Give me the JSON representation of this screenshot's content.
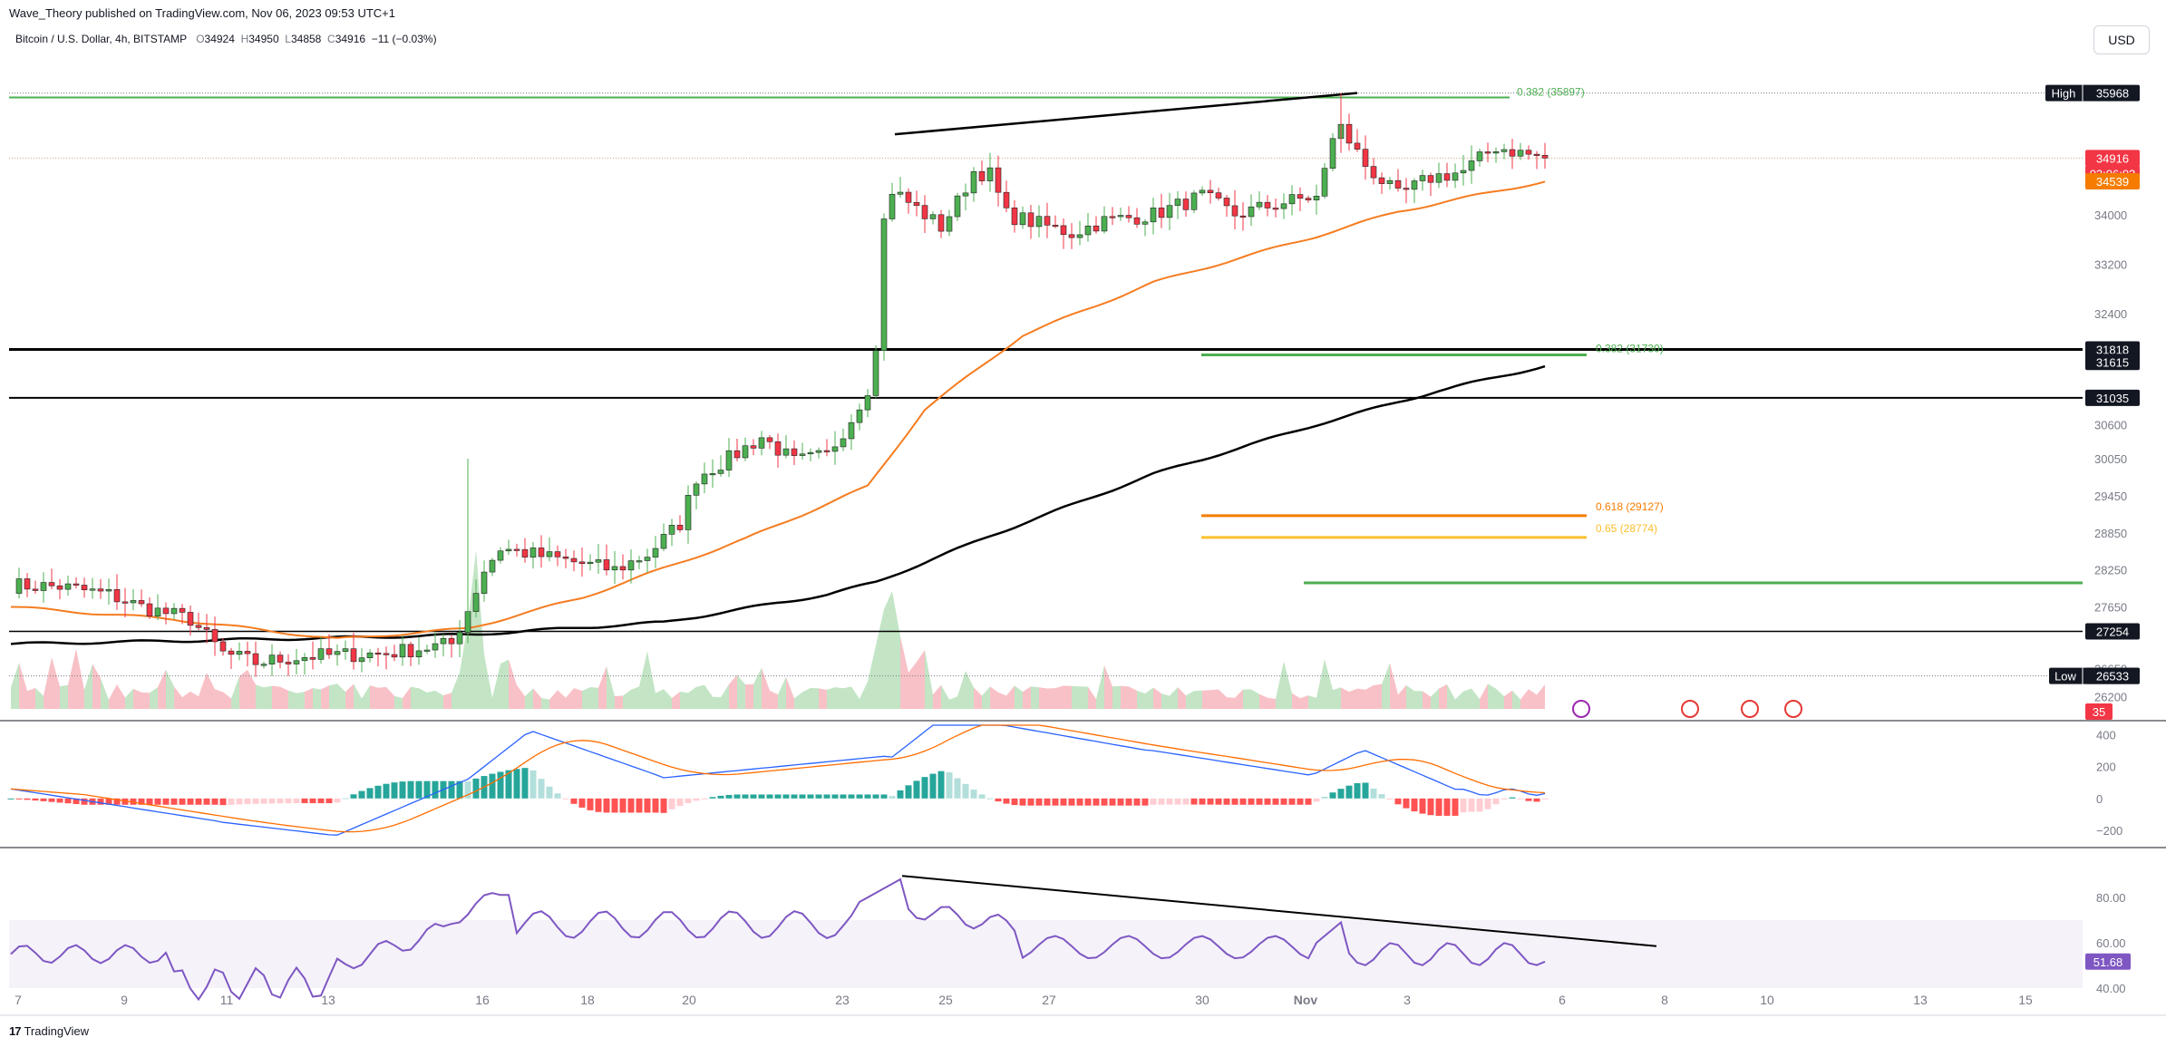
{
  "header": {
    "publisher": "Wave_Theory published on TradingView.com, Nov 06, 2023 09:53 UTC+1",
    "symbol": "Bitcoin / U.S. Dollar, 4h, BITSTAMP",
    "o_label": "O",
    "o": "34924",
    "h_label": "H",
    "h": "34950",
    "l_label": "L",
    "l": "34858",
    "c_label": "C",
    "c": "34916",
    "change": "−11 (−0.03%)",
    "currency": "USD"
  },
  "footer": {
    "brand": "TradingView",
    "logo_glyph": "17"
  },
  "colors": {
    "up": "#4caf50",
    "up_body": "#4caf50",
    "down": "#f23645",
    "ema_orange": "#f57c20",
    "ema_black": "#000000",
    "fib_green": "#4caf50",
    "fib_orange": "#f57c00",
    "fib_yellow": "#fbc02d",
    "macd_line": "#2962ff",
    "signal_line": "#ff6d00",
    "hist_pos": "#26a69a",
    "hist_pos_fade": "#b2dfdb",
    "hist_neg": "#ff5252",
    "hist_neg_fade": "#ffcdd2",
    "rsi": "#7e57c2",
    "rsi_band": "#7e57c2"
  },
  "price_axis": {
    "labels": [
      {
        "text": "34916",
        "value": 34916,
        "kind": "last",
        "bg": "#f23645",
        "fg": "#ffffff"
      },
      {
        "text": "03:06:03",
        "value": 34800,
        "kind": "countdown",
        "bg": "#f23645",
        "fg": "#ffffff"
      },
      {
        "text": "34539",
        "value": 34539,
        "kind": "ema",
        "bg": "#f57c00",
        "fg": "#ffffff"
      },
      {
        "text": "34000",
        "value": 34000,
        "kind": "tick"
      },
      {
        "text": "33200",
        "value": 33200,
        "kind": "tick"
      },
      {
        "text": "32400",
        "value": 32400,
        "kind": "tick"
      },
      {
        "text": "31818",
        "value": 31818,
        "kind": "level",
        "bg": "#131722",
        "fg": "#ffffff"
      },
      {
        "text": "31615",
        "value": 31615,
        "kind": "level",
        "bg": "#131722",
        "fg": "#ffffff"
      },
      {
        "text": "31035",
        "value": 31035,
        "kind": "level",
        "bg": "#131722",
        "fg": "#ffffff"
      },
      {
        "text": "30600",
        "value": 30600,
        "kind": "tick"
      },
      {
        "text": "30050",
        "value": 30050,
        "kind": "tick"
      },
      {
        "text": "29450",
        "value": 29450,
        "kind": "tick"
      },
      {
        "text": "28850",
        "value": 28850,
        "kind": "tick"
      },
      {
        "text": "28250",
        "value": 28250,
        "kind": "tick"
      },
      {
        "text": "27650",
        "value": 27650,
        "kind": "tick"
      },
      {
        "text": "27254",
        "value": 27254,
        "kind": "level",
        "bg": "#131722",
        "fg": "#ffffff"
      },
      {
        "text": "26650",
        "value": 26650,
        "kind": "tick"
      },
      {
        "text": "26533",
        "value": 26533,
        "kind": "level",
        "bg": "#131722",
        "fg": "#ffffff"
      },
      {
        "text": "26200",
        "value": 26200,
        "kind": "tick"
      }
    ],
    "high": {
      "tag": "High",
      "text": "35968",
      "value": 35968
    },
    "low": {
      "tag": "Low",
      "text": "26533",
      "value": 26533
    },
    "volume_badge": {
      "text": "35"
    }
  },
  "macd_axis": [
    "400",
    "200",
    "0",
    "−200"
  ],
  "rsi_axis": [
    "80.00",
    "60.00",
    "40.00"
  ],
  "rsi_last": "51.68",
  "time_axis": [
    "7",
    "9",
    "11",
    "13",
    "16",
    "18",
    "20",
    "23",
    "25",
    "27",
    "30",
    "Nov",
    "3",
    "6",
    "8",
    "10",
    "13",
    "15"
  ],
  "annotations": {
    "fib_top": "0.382 (35897)",
    "fib_mid": "0.382 (31730)",
    "fib_618": "0.618 (29127)",
    "fib_65": "0.65 (28774)"
  },
  "chart_data": {
    "type": "candlestick",
    "title": "Bitcoin / U.S. Dollar, 4h, BITSTAMP",
    "timeframe": "4h",
    "range": {
      "start": "Oct 7 2023",
      "end": "Nov 6 2023"
    },
    "price_ylim": [
      26000,
      36300
    ],
    "anchors": [
      {
        "i": 0,
        "price": 28000
      },
      {
        "i": 6,
        "price": 27980
      },
      {
        "i": 12,
        "price": 27850
      },
      {
        "i": 16,
        "price": 27650
      },
      {
        "i": 22,
        "price": 27450
      },
      {
        "i": 26,
        "price": 26900
      },
      {
        "i": 30,
        "price": 26750
      },
      {
        "i": 36,
        "price": 26850
      },
      {
        "i": 46,
        "price": 26900
      },
      {
        "i": 54,
        "price": 27050
      },
      {
        "i": 56,
        "price": 27600
      },
      {
        "i": 58,
        "price": 28250
      },
      {
        "i": 60,
        "price": 28600
      },
      {
        "i": 64,
        "price": 28500
      },
      {
        "i": 68,
        "price": 28400
      },
      {
        "i": 74,
        "price": 28250
      },
      {
        "i": 78,
        "price": 28500
      },
      {
        "i": 82,
        "price": 29000
      },
      {
        "i": 84,
        "price": 29750
      },
      {
        "i": 88,
        "price": 30050
      },
      {
        "i": 92,
        "price": 30400
      },
      {
        "i": 96,
        "price": 30000
      },
      {
        "i": 100,
        "price": 30100
      },
      {
        "i": 103,
        "price": 30700
      },
      {
        "i": 105,
        "price": 31200
      },
      {
        "i": 106,
        "price": 31800
      },
      {
        "i": 107,
        "price": 33900
      },
      {
        "i": 108,
        "price": 34400
      },
      {
        "i": 111,
        "price": 34100
      },
      {
        "i": 114,
        "price": 33800
      },
      {
        "i": 116,
        "price": 34200
      },
      {
        "i": 118,
        "price": 34700
      },
      {
        "i": 120,
        "price": 34650
      },
      {
        "i": 122,
        "price": 34000
      },
      {
        "i": 126,
        "price": 33850
      },
      {
        "i": 130,
        "price": 33700
      },
      {
        "i": 134,
        "price": 33900
      },
      {
        "i": 140,
        "price": 34000
      },
      {
        "i": 146,
        "price": 34300
      },
      {
        "i": 150,
        "price": 34000
      },
      {
        "i": 156,
        "price": 34200
      },
      {
        "i": 160,
        "price": 34300
      },
      {
        "i": 162,
        "price": 35200
      },
      {
        "i": 163,
        "price": 35400
      },
      {
        "i": 166,
        "price": 34800
      },
      {
        "i": 170,
        "price": 34300
      },
      {
        "i": 174,
        "price": 34600
      },
      {
        "i": 178,
        "price": 34700
      },
      {
        "i": 182,
        "price": 35100
      },
      {
        "i": 185,
        "price": 35000
      },
      {
        "i": 188,
        "price": 34916
      }
    ],
    "ema_orange_points": [
      {
        "i": 0,
        "price": 27650
      },
      {
        "i": 20,
        "price": 27450
      },
      {
        "i": 40,
        "price": 27130
      },
      {
        "i": 56,
        "price": 27300
      },
      {
        "i": 70,
        "price": 27800
      },
      {
        "i": 90,
        "price": 28750
      },
      {
        "i": 105,
        "price": 29600
      },
      {
        "i": 112,
        "price": 30850
      },
      {
        "i": 124,
        "price": 32050
      },
      {
        "i": 140,
        "price": 32900
      },
      {
        "i": 160,
        "price": 33650
      },
      {
        "i": 170,
        "price": 34050
      },
      {
        "i": 188,
        "price": 34539
      }
    ],
    "ema_black_points": [
      {
        "i": 0,
        "price": 27050
      },
      {
        "i": 40,
        "price": 27150
      },
      {
        "i": 56,
        "price": 27200
      },
      {
        "i": 80,
        "price": 27400
      },
      {
        "i": 100,
        "price": 27850
      },
      {
        "i": 106,
        "price": 28050
      },
      {
        "i": 120,
        "price": 28800
      },
      {
        "i": 140,
        "price": 29800
      },
      {
        "i": 160,
        "price": 30600
      },
      {
        "i": 175,
        "price": 31150
      },
      {
        "i": 188,
        "price": 31550
      }
    ],
    "levels": [
      {
        "price": 35968,
        "label": "High 35968",
        "color": "#4caf50"
      },
      {
        "price": 34916,
        "label": "last 34916",
        "color": "#c8a97e"
      },
      {
        "price": 31818,
        "color": "#000000"
      },
      {
        "price": 31035,
        "color": "#000000"
      },
      {
        "price": 27254,
        "color": "#000000"
      },
      {
        "price": 26533,
        "label": "Low 26533",
        "color": "#787b86"
      }
    ],
    "fib_levels": [
      {
        "label": "0.382 (35897)",
        "price": 35897
      },
      {
        "label": "0.382 (31730)",
        "price": 31730
      },
      {
        "label": "0.618 (29127)",
        "price": 29127
      },
      {
        "label": "0.65 (28774)",
        "price": 28774
      }
    ],
    "macd": {
      "ylim": [
        -280,
        460
      ],
      "ticks": [
        400,
        200,
        0,
        -200
      ]
    },
    "rsi": {
      "ylim": [
        30,
        100
      ],
      "band": [
        40,
        70
      ],
      "last": 51.68,
      "ticks": [
        80,
        60,
        40
      ]
    }
  }
}
